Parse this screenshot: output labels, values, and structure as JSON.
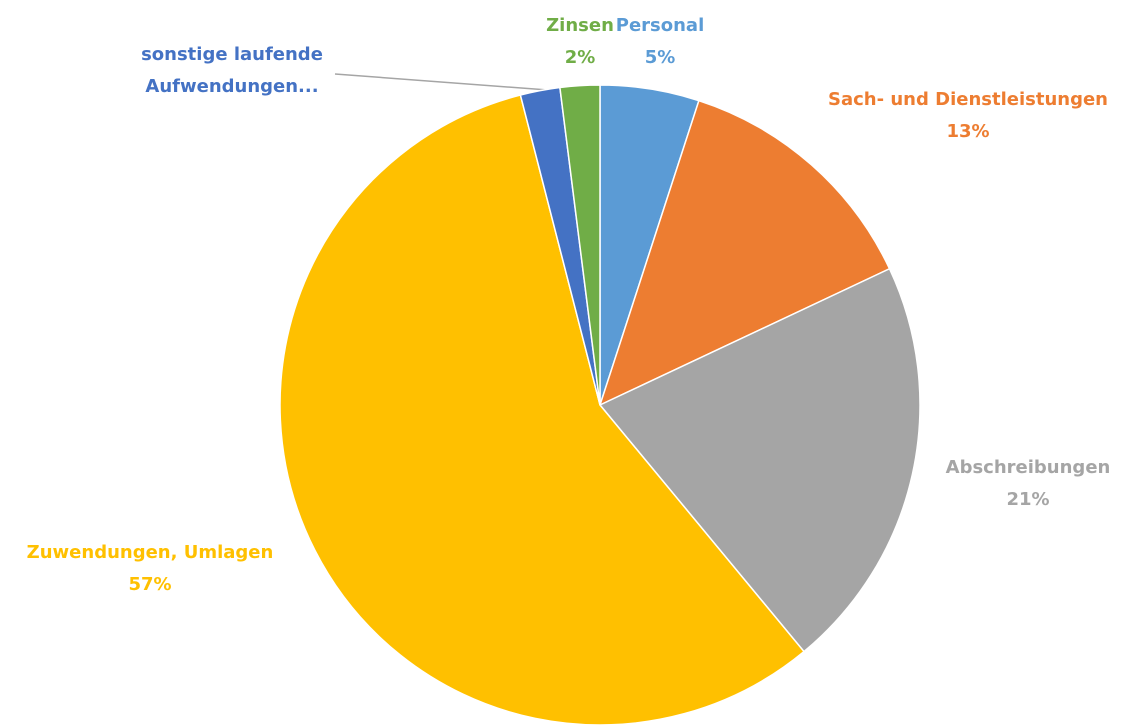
{
  "chart_data": {
    "type": "pie",
    "categories": [
      "Personal",
      "Sach- und Dienstleistungen",
      "Abschreibungen",
      "Zuwendungen, Umlagen",
      "sonstige laufende Aufwendungen...",
      "Zinsen"
    ],
    "values": [
      5,
      13,
      21,
      57,
      2,
      2
    ],
    "value_labels": [
      "5%",
      "13%",
      "21%",
      "57%",
      null,
      "2%"
    ],
    "colors": [
      "#5b9bd5",
      "#ed7d31",
      "#a5a5a5",
      "#ffc000",
      "#4472c4",
      "#70ad47"
    ]
  }
}
